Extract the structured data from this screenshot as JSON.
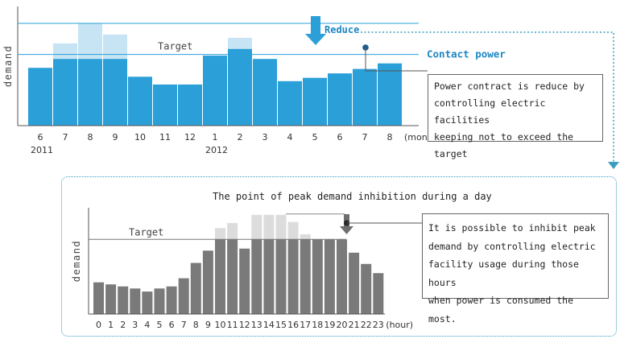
{
  "chart_data": [
    {
      "type": "bar",
      "ylabel": "demand",
      "x_unit": "(month)",
      "categories": [
        "6",
        "7",
        "8",
        "9",
        "10",
        "11",
        "12",
        "1",
        "2",
        "3",
        "4",
        "5",
        "6",
        "7",
        "8"
      ],
      "highlight_category_index": 13,
      "year_labels": [
        {
          "label": "2011",
          "at_index": 0
        },
        {
          "label": "2012",
          "at_index": 7
        }
      ],
      "values": [
        52,
        60,
        60,
        60,
        44,
        37,
        37,
        63,
        69,
        60,
        40,
        43,
        47,
        51,
        56
      ],
      "excess_values": [
        52,
        74,
        92,
        82,
        44,
        37,
        37,
        63,
        79,
        60,
        40,
        43,
        47,
        51,
        56
      ],
      "target": 64,
      "contract_line": 92,
      "ylim": [
        0,
        100
      ],
      "labels": {
        "target": "Target",
        "reduce": "Reduce",
        "contract": "Contact power"
      },
      "note": [
        "Power contract is reduce by",
        "controlling electric facilities",
        "keeping not to exceed the target"
      ],
      "colors": {
        "bar": "#2a9fd8",
        "excess": "#c7e4f4",
        "line": "#2a9fd8",
        "accent": "#1e87c4",
        "highlight_tick": "#2a9fd8"
      }
    },
    {
      "type": "bar",
      "title": "The point of peak demand inhibition during a day",
      "ylabel": "demand",
      "x_unit": "(hour)",
      "categories": [
        "0",
        "1",
        "2",
        "3",
        "4",
        "5",
        "6",
        "7",
        "8",
        "9",
        "10",
        "11",
        "12",
        "13",
        "14",
        "15",
        "16",
        "17",
        "18",
        "19",
        "20",
        "21",
        "22",
        "23"
      ],
      "values": [
        31,
        29,
        27,
        25,
        22,
        25,
        27,
        35,
        50,
        62,
        73,
        73,
        64,
        73,
        73,
        73,
        73,
        73,
        73,
        73,
        73,
        60,
        49,
        40
      ],
      "excess_values": [
        31,
        29,
        27,
        25,
        22,
        25,
        27,
        35,
        50,
        62,
        84,
        89,
        64,
        97,
        97,
        97,
        90,
        78,
        73,
        73,
        68,
        60,
        49,
        40
      ],
      "target": 73,
      "ylim": [
        0,
        100
      ],
      "labels": {
        "target": "Target"
      },
      "note": [
        "It is possible to inhibit peak",
        "demand by controlling electric",
        "facility usage during those hours",
        "when power is consumed the most."
      ],
      "colors": {
        "bar": "#7a7a7a",
        "excess": "#dcdcdc",
        "line": "#777777"
      }
    }
  ]
}
